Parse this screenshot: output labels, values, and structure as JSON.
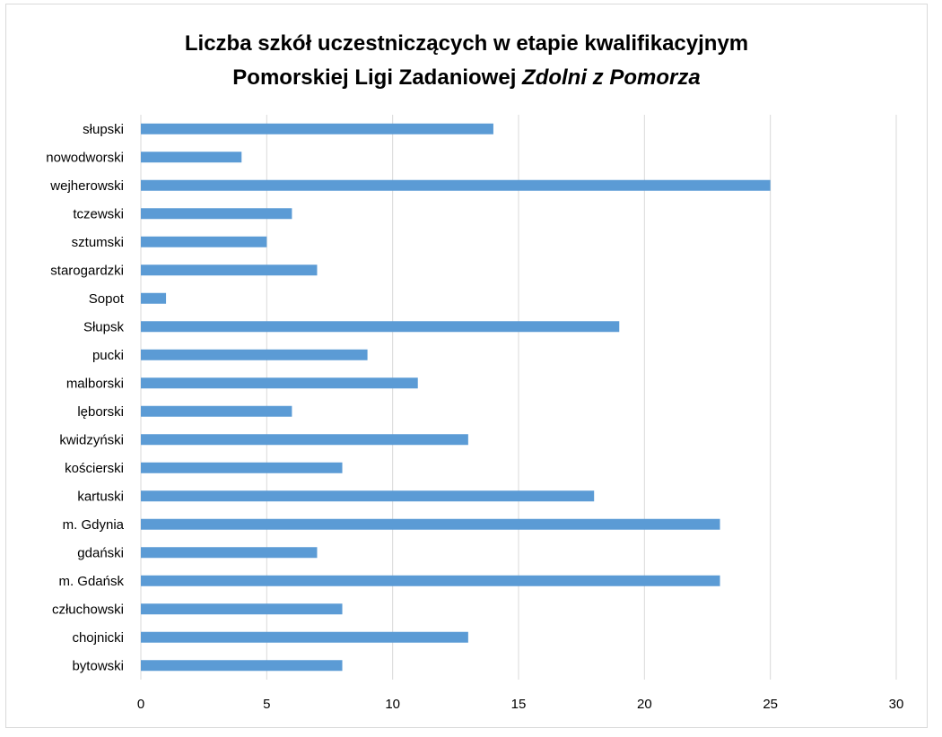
{
  "chart_data": {
    "type": "bar",
    "orientation": "horizontal",
    "title": "Liczba szkół uczestniczących w etapie kwalifikacyjnym",
    "title_line2_prefix": "Pomorskiej Ligi Zadaniowej ",
    "title_line2_italic": "Zdolni z Pomorza",
    "categories": [
      "słupski",
      "nowodworski",
      "wejherowski",
      "tczewski",
      "sztumski",
      "starogardzki",
      "Sopot",
      "Słupsk",
      "pucki",
      "malborski",
      "lęborski",
      "kwidzyński",
      "kościerski",
      "kartuski",
      "m. Gdynia",
      "gdański",
      "m. Gdańsk",
      "człuchowski",
      "chojnicki",
      "bytowski"
    ],
    "values": [
      14,
      4,
      25,
      6,
      5,
      7,
      1,
      19,
      9,
      11,
      6,
      13,
      8,
      18,
      23,
      7,
      23,
      8,
      13,
      8
    ],
    "xlim": [
      0,
      30
    ],
    "xticks": [
      "0",
      "5",
      "10",
      "15",
      "20",
      "25",
      "30"
    ],
    "grid": true,
    "bar_color": "#5b9bd5",
    "grid_color": "#d9d9d9"
  }
}
